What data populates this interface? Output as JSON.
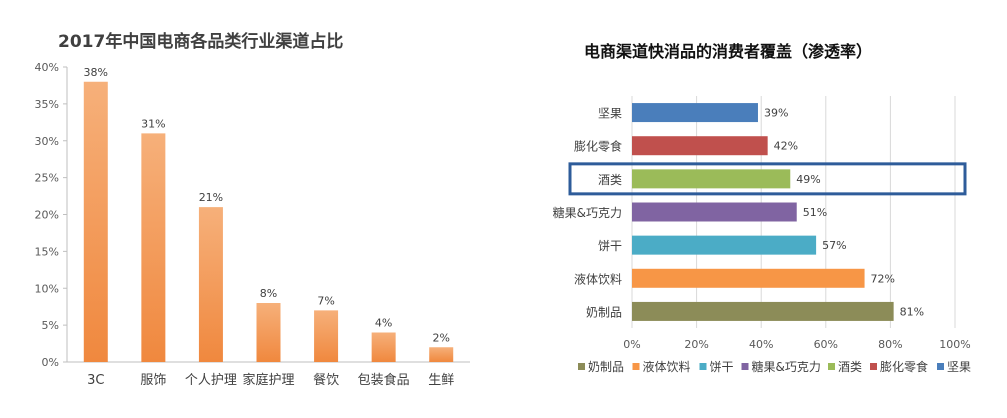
{
  "chart_data": [
    {
      "type": "bar",
      "title": "2017年中国电商各品类行业渠道占比",
      "categories": [
        "3C",
        "服饰",
        "个人护理",
        "家庭护理",
        "餐饮",
        "包装食品",
        "生鲜"
      ],
      "values": [
        38,
        31,
        21,
        8,
        7,
        4,
        2
      ],
      "data_labels": [
        "38%",
        "31%",
        "21%",
        "8%",
        "7%",
        "4%",
        "2%"
      ],
      "ylim": [
        0,
        40
      ],
      "yticks": [
        "0%",
        "5%",
        "10%",
        "15%",
        "20%",
        "25%",
        "30%",
        "35%",
        "40%"
      ],
      "xlabel": "",
      "ylabel": "",
      "grid": false,
      "bar_color": "#F0883E",
      "bar_color_light": "#F6B07A"
    },
    {
      "type": "bar",
      "orientation": "horizontal",
      "title": "电商渠道快消品的消费者覆盖（渗透率）",
      "categories": [
        "坚果",
        "膨化零食",
        "酒类",
        "糖果&巧克力",
        "饼干",
        "液体饮料",
        "奶制品"
      ],
      "values": [
        39,
        42,
        49,
        51,
        57,
        72,
        81
      ],
      "data_labels": [
        "39%",
        "42%",
        "49%",
        "51%",
        "57%",
        "72%",
        "81%"
      ],
      "colors": [
        "#4A7EBB",
        "#C0504D",
        "#9BBB59",
        "#8064A2",
        "#4BACC6",
        "#F79646",
        "#8C8C58"
      ],
      "xlim": [
        0,
        100
      ],
      "xticks": [
        "0%",
        "20%",
        "40%",
        "60%",
        "80%",
        "100%"
      ],
      "grid": true,
      "highlighted": "酒类",
      "highlight_color": "#2E5C9A",
      "legend": {
        "position": "bottom",
        "items": [
          "奶制品",
          "液体饮料",
          "饼干",
          "糖果&巧克力",
          "酒类",
          "膨化零食",
          "坚果"
        ]
      }
    }
  ]
}
